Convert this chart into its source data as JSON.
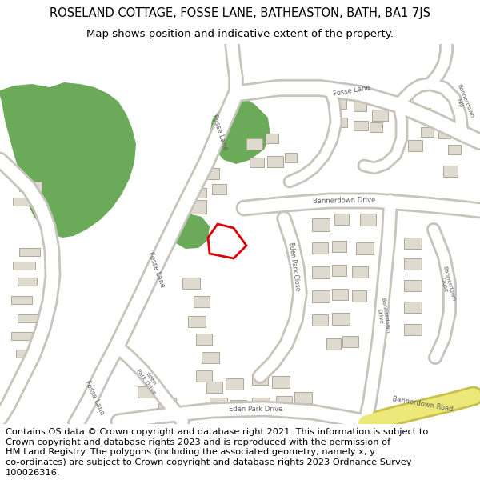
{
  "title": "ROSELAND COTTAGE, FOSSE LANE, BATHEASTON, BATH, BA1 7JS",
  "subtitle": "Map shows position and indicative extent of the property.",
  "footer_line1": "Contains OS data © Crown copyright and database right 2021. This information is subject to",
  "footer_line2": "Crown copyright and database rights 2023 and is reproduced with the permission of",
  "footer_line3": "HM Land Registry. The polygons (including the associated geometry, namely x, y",
  "footer_line4": "co-ordinates) are subject to Crown copyright and database rights 2023 Ordnance Survey",
  "footer_line5": "100026316.",
  "bg_color": "#f0ede6",
  "road_color": "#ffffff",
  "road_border_color": "#c8c4bc",
  "building_color": "#dedad0",
  "building_border": "#b0a898",
  "green_color": "#6aaa58",
  "plot_edge_color": "#dd0000",
  "yellow_color": "#ede87a",
  "yellow_border": "#c8c048",
  "title_fontsize": 10.5,
  "subtitle_fontsize": 9.5,
  "footer_fontsize": 8.2,
  "label_color": "#606060",
  "label_fontsize": 5.5
}
